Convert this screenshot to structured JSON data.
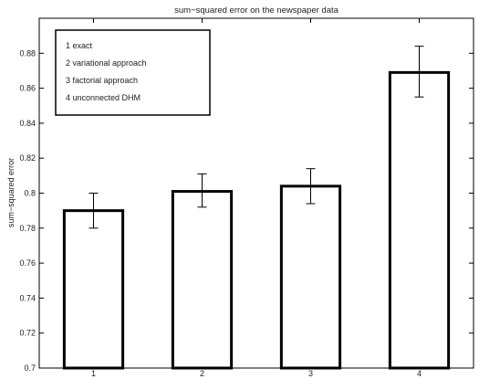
{
  "chart_data": {
    "type": "bar",
    "title": "sum−squared error on the newspaper data",
    "xlabel": "",
    "ylabel": "sum−squared error",
    "categories": [
      "1",
      "2",
      "3",
      "4"
    ],
    "values": [
      0.79,
      0.801,
      0.804,
      0.869
    ],
    "error_bars": [
      {
        "low": 0.78,
        "high": 0.8
      },
      {
        "low": 0.792,
        "high": 0.811
      },
      {
        "low": 0.794,
        "high": 0.814
      },
      {
        "low": 0.855,
        "high": 0.884
      }
    ],
    "ylim": [
      0.7,
      0.9
    ],
    "yticks": [
      "0.7",
      "0.72",
      "0.74",
      "0.76",
      "0.78",
      "0.8",
      "0.82",
      "0.84",
      "0.86",
      "0.88"
    ],
    "legend": {
      "placement": "top-left",
      "entries": [
        "1  exact",
        "2  variational approach",
        "3  factorial approach",
        "4  unconnected DHM"
      ]
    },
    "grid": false,
    "colors": {
      "bar_fill": "#ffffff",
      "bar_stroke": "#000000",
      "axis": "#000000"
    }
  }
}
